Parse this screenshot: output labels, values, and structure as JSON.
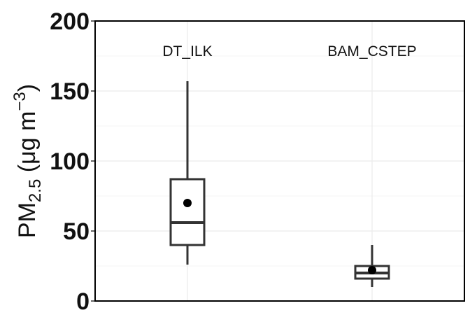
{
  "chart_data": {
    "type": "box",
    "title": "",
    "xlabel": "",
    "ylabel": {
      "base": "PM",
      "subscript": "2.5",
      "unit_open": " (μg m",
      "superscript": "−3",
      "unit_close": ")"
    },
    "ylim": [
      0,
      200
    ],
    "yticks": [
      0,
      50,
      100,
      150,
      200
    ],
    "grid": true,
    "legend": "none",
    "series": [
      {
        "category": "DT_ILK",
        "whisker_low": 26,
        "q1": 40,
        "median": 56,
        "q3": 87,
        "whisker_high": 157,
        "mean": 70
      },
      {
        "category": "BAM_CSTEP",
        "whisker_low": 10,
        "q1": 16,
        "median": 20,
        "q3": 25,
        "whisker_high": 40,
        "mean": 22
      }
    ],
    "colors": {
      "box": "#333333",
      "mean_point": "#000000",
      "grid": "#ebebeb",
      "panel_border": "#000000"
    }
  }
}
